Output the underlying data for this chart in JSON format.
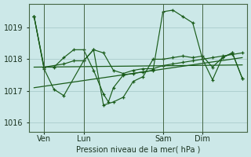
{
  "background_color": "#cce8e8",
  "grid_color": "#aacccc",
  "line_color": "#1a5c1a",
  "text_color": "#1a3320",
  "xlabel": "Pression niveau de la mer( hPa )",
  "ylim": [
    1015.7,
    1019.75
  ],
  "yticks": [
    1016,
    1017,
    1018,
    1019
  ],
  "xtick_labels": [
    "Ven",
    "Lun",
    "Sam",
    "Dim"
  ],
  "xtick_positions": [
    1,
    5,
    13,
    17
  ],
  "vline_positions": [
    1,
    5,
    13,
    17
  ],
  "xlim": [
    -0.5,
    21.5
  ],
  "trend1_x": [
    0,
    21
  ],
  "trend1_y": [
    1017.1,
    1018.05
  ],
  "trend2_x": [
    0,
    21
  ],
  "trend2_y": [
    1017.75,
    1017.82
  ],
  "series_main_x": [
    0,
    1,
    2,
    3,
    4,
    5,
    6,
    7,
    7.5,
    8,
    9,
    10,
    11,
    12,
    13,
    14,
    15,
    16,
    17,
    18,
    19,
    20,
    21
  ],
  "series_main_y": [
    1019.35,
    1017.75,
    1017.75,
    1018.05,
    1018.3,
    1018.3,
    1017.65,
    1016.9,
    1016.65,
    1017.1,
    1017.5,
    1017.55,
    1017.6,
    1017.65,
    1019.5,
    1019.55,
    1019.35,
    1019.15,
    1018.0,
    1017.35,
    1018.05,
    1018.2,
    1017.4
  ],
  "series2_x": [
    0,
    1,
    2,
    3,
    5,
    6,
    7,
    8,
    9,
    10,
    11,
    12,
    13,
    14,
    15,
    16,
    17,
    18,
    19,
    20,
    21
  ],
  "series2_y": [
    1019.35,
    1017.7,
    1017.05,
    1016.85,
    1017.95,
    1018.3,
    1016.55,
    1016.65,
    1016.8,
    1017.3,
    1017.45,
    1018.0,
    1018.0,
    1018.05,
    1018.1,
    1018.05,
    1018.1,
    1017.75,
    1018.05,
    1018.2,
    1017.4
  ],
  "series3_x": [
    0,
    1,
    3,
    4,
    5,
    6,
    7,
    8,
    9,
    10,
    11,
    12,
    13,
    14,
    15,
    16,
    17,
    18,
    19,
    20,
    21
  ],
  "series3_y": [
    1019.35,
    1017.75,
    1017.85,
    1017.95,
    1017.95,
    1018.3,
    1018.2,
    1017.65,
    1017.55,
    1017.65,
    1017.7,
    1017.7,
    1017.8,
    1017.85,
    1017.9,
    1017.95,
    1018.0,
    1018.05,
    1018.1,
    1018.15,
    1018.2
  ]
}
